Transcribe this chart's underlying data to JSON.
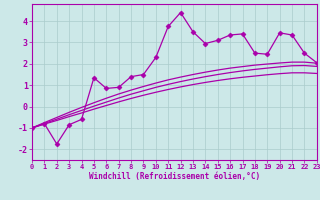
{
  "xlabel": "Windchill (Refroidissement éolien,°C)",
  "background_color": "#cce8e8",
  "grid_color": "#aacccc",
  "line_color": "#aa00aa",
  "xmin": 0,
  "xmax": 23,
  "ymin": -2.5,
  "ymax": 4.8,
  "yticks": [
    -2,
    -1,
    0,
    1,
    2,
    3,
    4
  ],
  "xticks": [
    0,
    1,
    2,
    3,
    4,
    5,
    6,
    7,
    8,
    9,
    10,
    11,
    12,
    13,
    14,
    15,
    16,
    17,
    18,
    19,
    20,
    21,
    22,
    23
  ],
  "series1_x": [
    0,
    1,
    2,
    3,
    4,
    5,
    6,
    7,
    8,
    9,
    10,
    11,
    12,
    13,
    14,
    15,
    16,
    17,
    18,
    19,
    20,
    21,
    22,
    23
  ],
  "series1_y": [
    -1.0,
    -0.82,
    -0.65,
    -0.47,
    -0.3,
    -0.12,
    0.05,
    0.22,
    0.38,
    0.53,
    0.67,
    0.8,
    0.92,
    1.03,
    1.13,
    1.22,
    1.3,
    1.37,
    1.43,
    1.49,
    1.54,
    1.58,
    1.58,
    1.55
  ],
  "series2_x": [
    0,
    1,
    2,
    3,
    4,
    5,
    6,
    7,
    8,
    9,
    10,
    11,
    12,
    13,
    14,
    15,
    16,
    17,
    18,
    19,
    20,
    21,
    22,
    23
  ],
  "series2_y": [
    -1.0,
    -0.79,
    -0.59,
    -0.38,
    -0.18,
    0.02,
    0.21,
    0.4,
    0.58,
    0.74,
    0.9,
    1.04,
    1.17,
    1.29,
    1.4,
    1.5,
    1.59,
    1.67,
    1.74,
    1.8,
    1.86,
    1.91,
    1.92,
    1.88
  ],
  "series3_x": [
    0,
    1,
    2,
    3,
    4,
    5,
    6,
    7,
    8,
    9,
    10,
    11,
    12,
    13,
    14,
    15,
    16,
    17,
    18,
    19,
    20,
    21,
    22,
    23
  ],
  "series3_y": [
    -1.0,
    -0.75,
    -0.51,
    -0.27,
    -0.04,
    0.18,
    0.39,
    0.59,
    0.77,
    0.94,
    1.1,
    1.25,
    1.38,
    1.5,
    1.61,
    1.71,
    1.8,
    1.87,
    1.94,
    1.99,
    2.04,
    2.08,
    2.08,
    2.03
  ],
  "series4_x": [
    0,
    1,
    2,
    3,
    4,
    5,
    6,
    7,
    8,
    9,
    10,
    11,
    12,
    13,
    14,
    15,
    16,
    17,
    18,
    19,
    20,
    21,
    22,
    23
  ],
  "series4_y": [
    -1.0,
    -0.8,
    -1.75,
    -0.85,
    -0.6,
    1.35,
    0.85,
    0.9,
    1.4,
    1.5,
    2.3,
    3.75,
    4.4,
    3.5,
    2.95,
    3.1,
    3.35,
    3.4,
    2.5,
    2.45,
    3.45,
    3.35,
    2.5,
    2.05
  ]
}
